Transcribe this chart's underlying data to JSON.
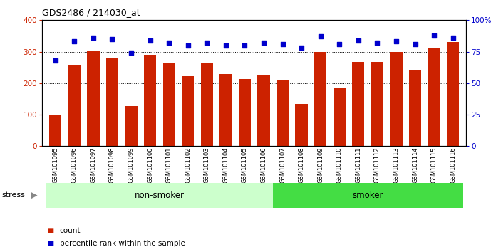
{
  "title": "GDS2486 / 214030_at",
  "samples": [
    "GSM101095",
    "GSM101096",
    "GSM101097",
    "GSM101098",
    "GSM101099",
    "GSM101100",
    "GSM101101",
    "GSM101102",
    "GSM101103",
    "GSM101104",
    "GSM101105",
    "GSM101106",
    "GSM101107",
    "GSM101108",
    "GSM101109",
    "GSM101110",
    "GSM101111",
    "GSM101112",
    "GSM101113",
    "GSM101114",
    "GSM101115",
    "GSM101116"
  ],
  "counts": [
    97,
    258,
    303,
    281,
    128,
    291,
    265,
    222,
    265,
    228,
    213,
    225,
    209,
    133,
    300,
    184,
    268,
    268,
    300,
    243,
    311,
    330
  ],
  "percentile_ranks": [
    68,
    83,
    86,
    85,
    74,
    84,
    82,
    80,
    82,
    80,
    80,
    82,
    81,
    78,
    87,
    81,
    84,
    82,
    83,
    81,
    88,
    86
  ],
  "non_smoker_count": 12,
  "smoker_count": 10,
  "non_smoker_color": "#ccffcc",
  "smoker_color": "#44dd44",
  "bar_color": "#cc2200",
  "dot_color": "#0000cc",
  "ylim_left": [
    0,
    400
  ],
  "ylim_right": [
    0,
    100
  ],
  "yticks_left": [
    0,
    100,
    200,
    300,
    400
  ],
  "yticks_right": [
    0,
    25,
    50,
    75,
    100
  ],
  "ytick_labels_right": [
    "0",
    "25",
    "50",
    "75",
    "100%"
  ],
  "grid_values": [
    100,
    200,
    300
  ],
  "stress_label": "stress",
  "legend_count_label": "count",
  "legend_pct_label": "percentile rank within the sample",
  "fig_width": 6.96,
  "fig_height": 3.54,
  "dpi": 100
}
